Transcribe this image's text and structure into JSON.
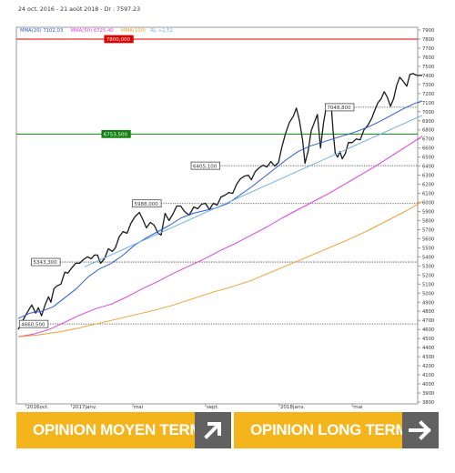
{
  "chart_data": {
    "type": "line",
    "title": "24 oct. 2016 - 21 août 2018 - Dr : 7597.23",
    "legend": [
      {
        "text": "MMA(20)",
        "value": "7102,03",
        "color": "#2a5bd6"
      },
      {
        "text": "MMA(50)",
        "value": "6725,40",
        "color": "#e040e0"
      },
      {
        "text": "MMA(100)",
        "value": "",
        "color": "#f0a030"
      },
      {
        "text": "RL",
        "value": "+1,52",
        "color": "#6fb0e8"
      }
    ],
    "ylim": [
      3780,
      7930
    ],
    "y_ticks": [
      3800,
      3900,
      4000,
      4100,
      4200,
      4300,
      4400,
      4500,
      4600,
      4700,
      4800,
      4900,
      5000,
      5100,
      5200,
      5300,
      5400,
      5500,
      5600,
      5700,
      5800,
      5900,
      6000,
      6100,
      6200,
      6300,
      6400,
      6500,
      6600,
      6700,
      6800,
      6900,
      7000,
      7100,
      7200,
      7300,
      7400,
      7500,
      7600,
      7700,
      7800,
      7900
    ],
    "x_labels": [
      {
        "text": "2016oct.",
        "t": 0.02
      },
      {
        "text": "2017janv.",
        "t": 0.137
      },
      {
        "text": "mai",
        "t": 0.295
      },
      {
        "text": "sept.",
        "t": 0.482
      },
      {
        "text": "2018janv.",
        "t": 0.672
      },
      {
        "text": "mai",
        "t": 0.86
      }
    ],
    "series": [
      {
        "key": "price",
        "color": "#1a1a1a",
        "width": 1.3,
        "points": [
          [
            0.0,
            4600
          ],
          [
            0.012,
            4700
          ],
          [
            0.025,
            4800
          ],
          [
            0.035,
            4870
          ],
          [
            0.045,
            4780
          ],
          [
            0.052,
            4840
          ],
          [
            0.06,
            4750
          ],
          [
            0.07,
            4880
          ],
          [
            0.078,
            4960
          ],
          [
            0.084,
            4900
          ],
          [
            0.092,
            5050
          ],
          [
            0.1,
            5080
          ],
          [
            0.11,
            5100
          ],
          [
            0.12,
            5230
          ],
          [
            0.128,
            5220
          ],
          [
            0.138,
            5280
          ],
          [
            0.148,
            5330
          ],
          [
            0.158,
            5330
          ],
          [
            0.168,
            5370
          ],
          [
            0.178,
            5400
          ],
          [
            0.188,
            5380
          ],
          [
            0.196,
            5420
          ],
          [
            0.204,
            5420
          ],
          [
            0.212,
            5330
          ],
          [
            0.222,
            5380
          ],
          [
            0.232,
            5490
          ],
          [
            0.242,
            5460
          ],
          [
            0.25,
            5500
          ],
          [
            0.26,
            5620
          ],
          [
            0.27,
            5680
          ],
          [
            0.28,
            5660
          ],
          [
            0.29,
            5770
          ],
          [
            0.3,
            5840
          ],
          [
            0.312,
            5890
          ],
          [
            0.322,
            5800
          ],
          [
            0.33,
            5720
          ],
          [
            0.34,
            5780
          ],
          [
            0.35,
            5750
          ],
          [
            0.36,
            5660
          ],
          [
            0.368,
            5640
          ],
          [
            0.378,
            5880
          ],
          [
            0.388,
            5800
          ],
          [
            0.398,
            5870
          ],
          [
            0.408,
            5960
          ],
          [
            0.418,
            5960
          ],
          [
            0.428,
            5900
          ],
          [
            0.44,
            5860
          ],
          [
            0.452,
            5950
          ],
          [
            0.462,
            5930
          ],
          [
            0.472,
            5980
          ],
          [
            0.482,
            5990
          ],
          [
            0.492,
            5920
          ],
          [
            0.502,
            5990
          ],
          [
            0.512,
            5970
          ],
          [
            0.522,
            6060
          ],
          [
            0.532,
            6080
          ],
          [
            0.542,
            6110
          ],
          [
            0.552,
            6100
          ],
          [
            0.562,
            6200
          ],
          [
            0.572,
            6260
          ],
          [
            0.582,
            6290
          ],
          [
            0.592,
            6300
          ],
          [
            0.6,
            6250
          ],
          [
            0.61,
            6340
          ],
          [
            0.62,
            6380
          ],
          [
            0.63,
            6410
          ],
          [
            0.64,
            6390
          ],
          [
            0.65,
            6450
          ],
          [
            0.66,
            6400
          ],
          [
            0.67,
            6440
          ],
          [
            0.678,
            6600
          ],
          [
            0.688,
            6760
          ],
          [
            0.698,
            6880
          ],
          [
            0.708,
            6950
          ],
          [
            0.716,
            7040
          ],
          [
            0.724,
            6900
          ],
          [
            0.732,
            6680
          ],
          [
            0.738,
            6430
          ],
          [
            0.746,
            6560
          ],
          [
            0.754,
            6790
          ],
          [
            0.762,
            6880
          ],
          [
            0.77,
            6970
          ],
          [
            0.778,
            6600
          ],
          [
            0.786,
            6880
          ],
          [
            0.794,
            7080
          ],
          [
            0.8,
            7060
          ],
          [
            0.806,
            7040
          ],
          [
            0.81,
            6800
          ],
          [
            0.816,
            6540
          ],
          [
            0.822,
            6500
          ],
          [
            0.828,
            6560
          ],
          [
            0.834,
            6480
          ],
          [
            0.842,
            6540
          ],
          [
            0.85,
            6660
          ],
          [
            0.86,
            6660
          ],
          [
            0.87,
            6700
          ],
          [
            0.88,
            6690
          ],
          [
            0.89,
            6800
          ],
          [
            0.9,
            6850
          ],
          [
            0.91,
            6930
          ],
          [
            0.918,
            7020
          ],
          [
            0.926,
            7100
          ],
          [
            0.934,
            7140
          ],
          [
            0.942,
            7220
          ],
          [
            0.95,
            7160
          ],
          [
            0.958,
            7060
          ],
          [
            0.966,
            7140
          ],
          [
            0.974,
            7290
          ],
          [
            0.982,
            7380
          ],
          [
            0.99,
            7340
          ],
          [
            1.0,
            7280
          ],
          [
            1.008,
            7410
          ],
          [
            1.016,
            7420
          ],
          [
            1.026,
            7400
          ],
          [
            1.04,
            7400
          ]
        ]
      },
      {
        "key": "mma20",
        "color": "#2a5bd6",
        "width": 1,
        "points": [
          [
            0.0,
            4720
          ],
          [
            0.03,
            4780
          ],
          [
            0.06,
            4800
          ],
          [
            0.09,
            4850
          ],
          [
            0.12,
            4950
          ],
          [
            0.15,
            5050
          ],
          [
            0.18,
            5180
          ],
          [
            0.21,
            5270
          ],
          [
            0.24,
            5330
          ],
          [
            0.27,
            5420
          ],
          [
            0.3,
            5530
          ],
          [
            0.33,
            5610
          ],
          [
            0.36,
            5680
          ],
          [
            0.39,
            5750
          ],
          [
            0.42,
            5830
          ],
          [
            0.45,
            5880
          ],
          [
            0.48,
            5910
          ],
          [
            0.51,
            5940
          ],
          [
            0.54,
            5990
          ],
          [
            0.57,
            6080
          ],
          [
            0.6,
            6170
          ],
          [
            0.63,
            6270
          ],
          [
            0.66,
            6370
          ],
          [
            0.69,
            6470
          ],
          [
            0.72,
            6560
          ],
          [
            0.75,
            6620
          ],
          [
            0.78,
            6660
          ],
          [
            0.81,
            6700
          ],
          [
            0.84,
            6740
          ],
          [
            0.87,
            6780
          ],
          [
            0.9,
            6830
          ],
          [
            0.93,
            6890
          ],
          [
            0.96,
            6960
          ],
          [
            0.99,
            7030
          ],
          [
            1.02,
            7090
          ],
          [
            1.04,
            7120
          ]
        ]
      },
      {
        "key": "mma50",
        "color": "#e040e0",
        "width": 1,
        "points": [
          [
            0.0,
            4520
          ],
          [
            0.04,
            4550
          ],
          [
            0.08,
            4600
          ],
          [
            0.12,
            4680
          ],
          [
            0.16,
            4760
          ],
          [
            0.2,
            4830
          ],
          [
            0.24,
            4880
          ],
          [
            0.28,
            4960
          ],
          [
            0.32,
            5050
          ],
          [
            0.36,
            5130
          ],
          [
            0.4,
            5220
          ],
          [
            0.44,
            5300
          ],
          [
            0.48,
            5380
          ],
          [
            0.52,
            5470
          ],
          [
            0.56,
            5550
          ],
          [
            0.6,
            5640
          ],
          [
            0.64,
            5730
          ],
          [
            0.68,
            5830
          ],
          [
            0.72,
            5920
          ],
          [
            0.76,
            6010
          ],
          [
            0.8,
            6100
          ],
          [
            0.84,
            6200
          ],
          [
            0.88,
            6300
          ],
          [
            0.92,
            6400
          ],
          [
            0.96,
            6510
          ],
          [
            1.0,
            6620
          ],
          [
            1.04,
            6730
          ]
        ]
      },
      {
        "key": "mma100",
        "color": "#f0a030",
        "width": 1,
        "points": [
          [
            0.0,
            4520
          ],
          [
            0.05,
            4540
          ],
          [
            0.1,
            4570
          ],
          [
            0.15,
            4610
          ],
          [
            0.2,
            4660
          ],
          [
            0.25,
            4710
          ],
          [
            0.3,
            4760
          ],
          [
            0.35,
            4810
          ],
          [
            0.4,
            4870
          ],
          [
            0.45,
            4940
          ],
          [
            0.5,
            5010
          ],
          [
            0.55,
            5070
          ],
          [
            0.6,
            5140
          ],
          [
            0.65,
            5230
          ],
          [
            0.7,
            5320
          ],
          [
            0.75,
            5410
          ],
          [
            0.8,
            5500
          ],
          [
            0.85,
            5590
          ],
          [
            0.9,
            5690
          ],
          [
            0.95,
            5800
          ],
          [
            1.0,
            5910
          ],
          [
            1.04,
            6010
          ]
        ]
      },
      {
        "key": "rl",
        "color": "#6fb0e8",
        "width": 1,
        "points": [
          [
            0.17,
            5290
          ],
          [
            1.04,
            6960
          ]
        ]
      }
    ],
    "levels": [
      {
        "value": 7800,
        "label": "7800,000",
        "color": "#e00000",
        "bg": "#e00000",
        "fg": "#ffffff",
        "style": "solid",
        "label_t": 0.222
      },
      {
        "value": 6753.5,
        "label": "6753,500",
        "color": "#108010",
        "bg": "#108010",
        "fg": "#ffffff",
        "style": "solid",
        "label_t": 0.215
      },
      {
        "value": 7048.8,
        "label": "7048,800",
        "color": "#333333",
        "bg": "#ffffff",
        "fg": "#333333",
        "style": "dotted",
        "label_t": 0.79,
        "line_from": 0.79
      },
      {
        "value": 6405.1,
        "label": "6405,100",
        "color": "#333333",
        "bg": "#ffffff",
        "fg": "#333333",
        "style": "dotted",
        "label_t": 0.445,
        "line_from": 0.445
      },
      {
        "value": 5988,
        "label": "5988,000",
        "color": "#333333",
        "bg": "#ffffff",
        "fg": "#333333",
        "style": "dotted",
        "label_t": 0.294,
        "line_from": 0.294
      },
      {
        "value": 5343.3,
        "label": "5343,300",
        "color": "#333333",
        "bg": "#ffffff",
        "fg": "#333333",
        "style": "dotted",
        "label_t": 0.034,
        "line_from": 0.034
      },
      {
        "value": 4660.5,
        "label": "4660,500",
        "color": "#333333",
        "bg": "#ffffff",
        "fg": "#333333",
        "style": "dotted",
        "label_t": 0.003,
        "line_from": 0.003
      }
    ]
  },
  "buttons": [
    {
      "label": "OPINION MOYEN TERME",
      "icon": "arrow-up-right-icon"
    },
    {
      "label": "OPINION LONG TERME",
      "icon": "arrow-right-icon"
    }
  ]
}
